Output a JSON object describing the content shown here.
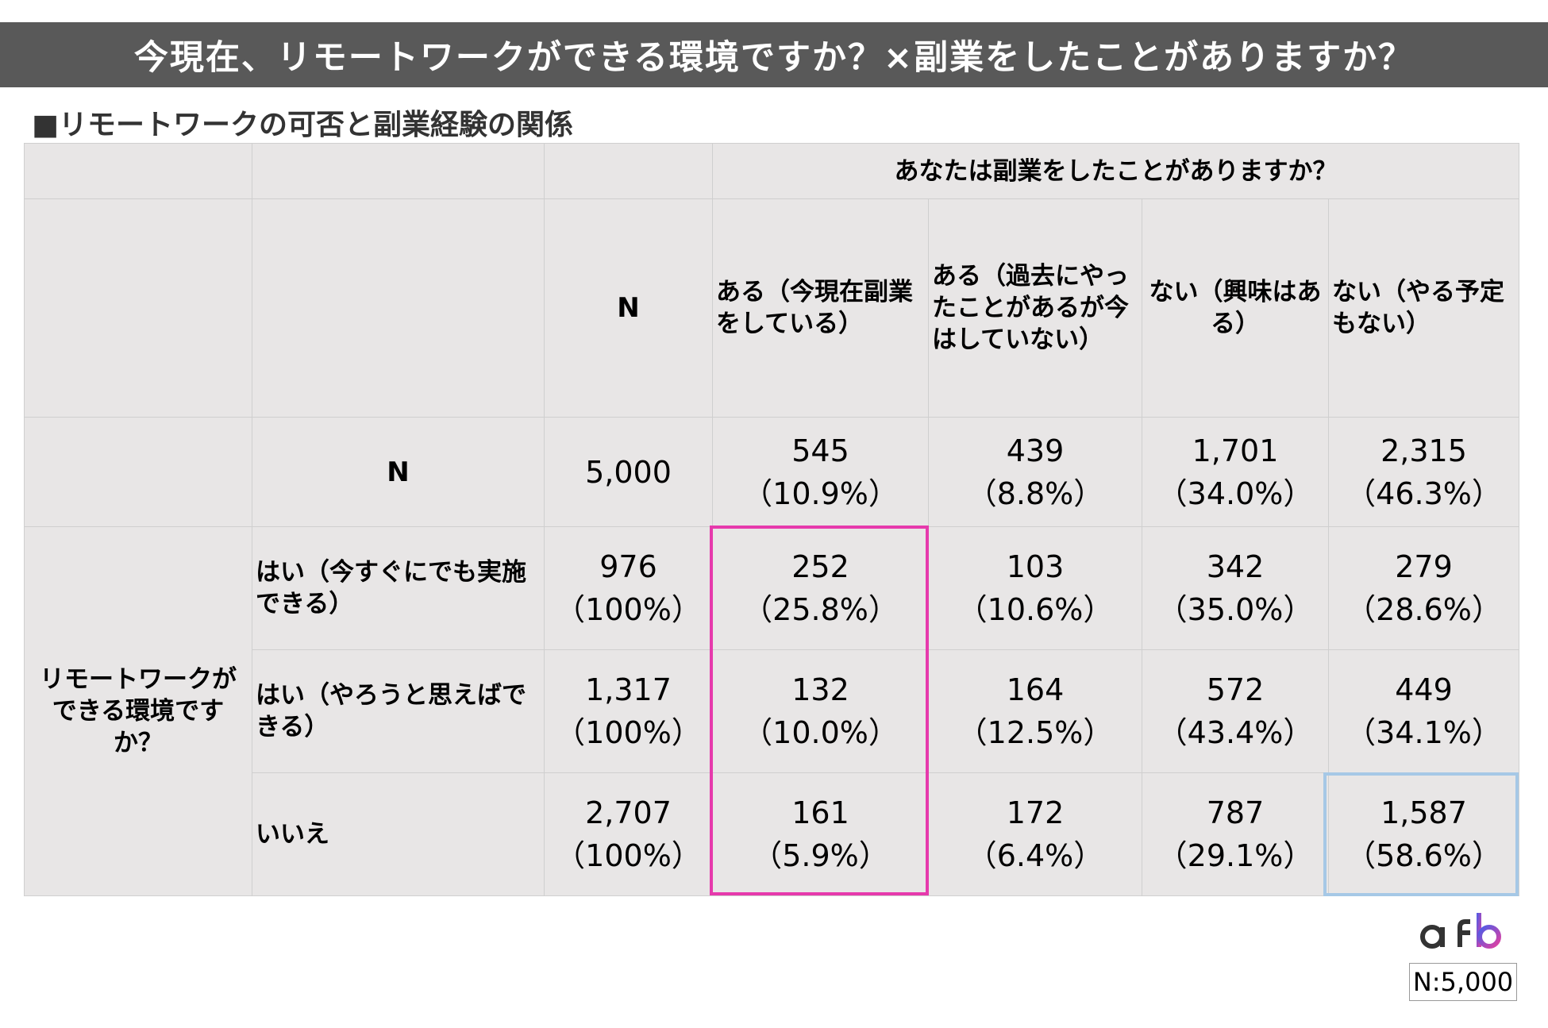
{
  "title": "今現在、リモートワークができる環境ですか？×副業をしたことがありますか？",
  "subtitle": "■リモートワークの可否と副業経験の関係",
  "chart_data": {
    "type": "table",
    "column_group_header": "あなたは副業をしたことがありますか？",
    "row_group_header": "リモートワークができる環境ですか？",
    "columns": [
      "N",
      "ある（今現在副業をしている）",
      "ある（過去にやったことがあるが今はしていない）",
      "ない（興味はある）",
      "ない（やる予定もない）"
    ],
    "total_row": {
      "label": "N",
      "values": [
        {
          "count": "5,000",
          "pct": ""
        },
        {
          "count": "545",
          "pct": "（10.9%）"
        },
        {
          "count": "439",
          "pct": "（8.8%）"
        },
        {
          "count": "1,701",
          "pct": "（34.0%）"
        },
        {
          "count": "2,315",
          "pct": "（46.3%）"
        }
      ]
    },
    "rows": [
      {
        "label": "はい（今すぐにでも実施できる）",
        "values": [
          {
            "count": "976",
            "pct": "（100%）"
          },
          {
            "count": "252",
            "pct": "（25.8%）"
          },
          {
            "count": "103",
            "pct": "（10.6%）"
          },
          {
            "count": "342",
            "pct": "（35.0%）"
          },
          {
            "count": "279",
            "pct": "（28.6%）"
          }
        ]
      },
      {
        "label": "はい（やろうと思えばできる）",
        "values": [
          {
            "count": "1,317",
            "pct": "（100%）"
          },
          {
            "count": "132",
            "pct": "（10.0%）"
          },
          {
            "count": "164",
            "pct": "（12.5%）"
          },
          {
            "count": "572",
            "pct": "（43.4%）"
          },
          {
            "count": "449",
            "pct": "（34.1%）"
          }
        ]
      },
      {
        "label": "いいえ",
        "values": [
          {
            "count": "2,707",
            "pct": "（100%）"
          },
          {
            "count": "161",
            "pct": "（5.9%）"
          },
          {
            "count": "172",
            "pct": "（6.4%）"
          },
          {
            "count": "787",
            "pct": "（29.1%）"
          },
          {
            "count": "1,587",
            "pct": "（58.6%）"
          }
        ]
      }
    ],
    "highlight_colors": {
      "column": "#e63aac",
      "cell": "#a6c8e6"
    }
  },
  "footer": {
    "logo_text": "afb",
    "sample_size": "N:5,000"
  }
}
